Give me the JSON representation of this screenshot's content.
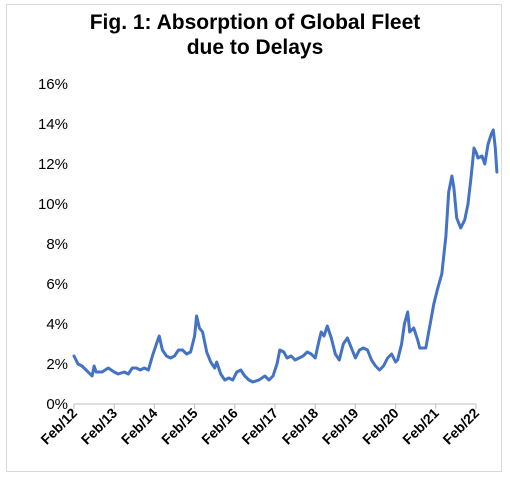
{
  "chart_data": {
    "type": "line",
    "title": "Fig. 1: Absorption of Global Fleet",
    "subtitle": "due to Delays",
    "xlabel": "",
    "ylabel": "",
    "ylim": [
      0,
      16
    ],
    "yticks": [
      "0%",
      "2%",
      "4%",
      "6%",
      "8%",
      "10%",
      "12%",
      "14%",
      "16%"
    ],
    "xticks": [
      "Feb/12",
      "Feb/13",
      "Feb/14",
      "Feb/15",
      "Feb/16",
      "Feb/17",
      "Feb/18",
      "Feb/19",
      "Feb/20",
      "Feb/21",
      "Feb/22"
    ],
    "x_unit": "years since Feb 2012",
    "grid": false,
    "legend": "none",
    "colors": {
      "line": "#4472c4",
      "axis": "#bfbfbf"
    },
    "series": [
      {
        "values": [
          [
            0.0,
            2.4
          ],
          [
            0.1,
            2.0
          ],
          [
            0.2,
            1.9
          ],
          [
            0.3,
            1.7
          ],
          [
            0.4,
            1.5
          ],
          [
            0.45,
            1.4
          ],
          [
            0.5,
            1.9
          ],
          [
            0.55,
            1.6
          ],
          [
            0.7,
            1.6
          ],
          [
            0.85,
            1.8
          ],
          [
            1.0,
            1.6
          ],
          [
            1.1,
            1.5
          ],
          [
            1.25,
            1.6
          ],
          [
            1.35,
            1.5
          ],
          [
            1.45,
            1.8
          ],
          [
            1.55,
            1.8
          ],
          [
            1.65,
            1.7
          ],
          [
            1.75,
            1.8
          ],
          [
            1.85,
            1.7
          ],
          [
            1.95,
            2.4
          ],
          [
            2.05,
            3.0
          ],
          [
            2.12,
            3.4
          ],
          [
            2.2,
            2.7
          ],
          [
            2.3,
            2.4
          ],
          [
            2.4,
            2.3
          ],
          [
            2.5,
            2.4
          ],
          [
            2.6,
            2.7
          ],
          [
            2.7,
            2.7
          ],
          [
            2.8,
            2.5
          ],
          [
            2.9,
            2.6
          ],
          [
            3.0,
            3.4
          ],
          [
            3.05,
            4.4
          ],
          [
            3.12,
            3.8
          ],
          [
            3.2,
            3.6
          ],
          [
            3.3,
            2.6
          ],
          [
            3.4,
            2.1
          ],
          [
            3.5,
            1.8
          ],
          [
            3.55,
            2.1
          ],
          [
            3.65,
            1.5
          ],
          [
            3.75,
            1.2
          ],
          [
            3.85,
            1.3
          ],
          [
            3.95,
            1.2
          ],
          [
            4.05,
            1.6
          ],
          [
            4.15,
            1.7
          ],
          [
            4.25,
            1.4
          ],
          [
            4.35,
            1.2
          ],
          [
            4.45,
            1.1
          ],
          [
            4.6,
            1.2
          ],
          [
            4.75,
            1.4
          ],
          [
            4.85,
            1.2
          ],
          [
            4.95,
            1.4
          ],
          [
            5.05,
            2.0
          ],
          [
            5.12,
            2.7
          ],
          [
            5.22,
            2.6
          ],
          [
            5.3,
            2.3
          ],
          [
            5.4,
            2.4
          ],
          [
            5.5,
            2.2
          ],
          [
            5.6,
            2.3
          ],
          [
            5.7,
            2.4
          ],
          [
            5.8,
            2.6
          ],
          [
            5.9,
            2.5
          ],
          [
            6.0,
            2.3
          ],
          [
            6.1,
            3.2
          ],
          [
            6.15,
            3.6
          ],
          [
            6.22,
            3.4
          ],
          [
            6.3,
            3.9
          ],
          [
            6.4,
            3.3
          ],
          [
            6.5,
            2.5
          ],
          [
            6.6,
            2.2
          ],
          [
            6.7,
            3.0
          ],
          [
            6.8,
            3.3
          ],
          [
            6.9,
            2.8
          ],
          [
            7.0,
            2.3
          ],
          [
            7.1,
            2.7
          ],
          [
            7.2,
            2.8
          ],
          [
            7.3,
            2.7
          ],
          [
            7.4,
            2.2
          ],
          [
            7.5,
            1.9
          ],
          [
            7.6,
            1.7
          ],
          [
            7.7,
            1.9
          ],
          [
            7.8,
            2.3
          ],
          [
            7.9,
            2.5
          ],
          [
            8.0,
            2.1
          ],
          [
            8.05,
            2.2
          ],
          [
            8.15,
            3.0
          ],
          [
            8.22,
            4.0
          ],
          [
            8.3,
            4.6
          ],
          [
            8.35,
            3.6
          ],
          [
            8.45,
            3.8
          ],
          [
            8.55,
            3.2
          ],
          [
            8.6,
            2.8
          ],
          [
            8.75,
            2.8
          ],
          [
            8.85,
            3.9
          ],
          [
            8.95,
            5.0
          ],
          [
            9.05,
            5.8
          ],
          [
            9.15,
            6.5
          ],
          [
            9.25,
            8.4
          ],
          [
            9.32,
            10.6
          ],
          [
            9.4,
            11.4
          ],
          [
            9.45,
            10.8
          ],
          [
            9.52,
            9.3
          ],
          [
            9.62,
            8.8
          ],
          [
            9.72,
            9.2
          ],
          [
            9.8,
            10.0
          ],
          [
            9.88,
            11.4
          ],
          [
            9.95,
            12.8
          ],
          [
            10.0,
            12.6
          ],
          [
            10.05,
            12.3
          ],
          [
            10.15,
            12.4
          ],
          [
            10.22,
            12.0
          ],
          [
            10.3,
            13.0
          ],
          [
            10.38,
            13.5
          ],
          [
            10.43,
            13.7
          ],
          [
            10.48,
            12.8
          ],
          [
            10.52,
            11.6
          ]
        ]
      }
    ]
  }
}
